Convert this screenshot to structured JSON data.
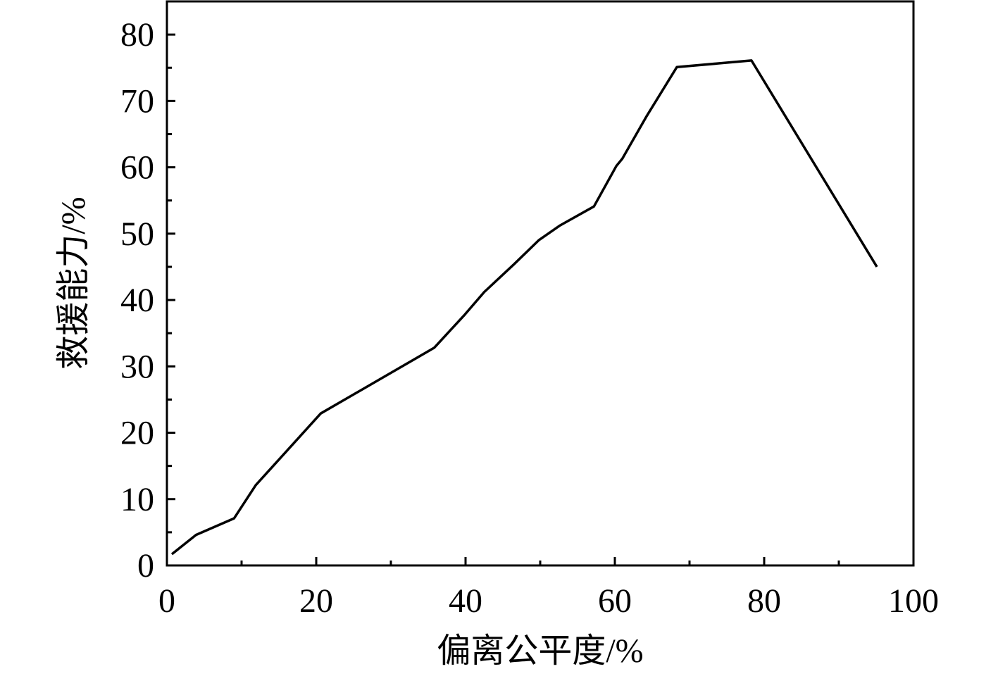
{
  "chart_data": {
    "type": "line",
    "xlabel": "偏离公平度/%",
    "ylabel": "救援能力/%",
    "x": [
      0.66,
      3.9,
      9.0,
      11.9,
      20.6,
      35.8,
      39.9,
      42.5,
      46.5,
      49.8,
      52.6,
      57.2,
      60.2,
      61.0,
      64.2,
      68.3,
      78.3,
      95.1
    ],
    "values": [
      1.7,
      4.6,
      7.1,
      12.1,
      22.9,
      32.8,
      37.8,
      41.2,
      45.4,
      49.0,
      51.2,
      54.1,
      60.2,
      61.3,
      67.6,
      75.1,
      76.1,
      45.0
    ],
    "color": "#000000",
    "xlim": [
      0,
      100
    ],
    "xticks": [
      0,
      20,
      40,
      60,
      80,
      100
    ],
    "ylim": [
      0,
      85
    ],
    "yticks": [
      0,
      10,
      20,
      30,
      40,
      50,
      60,
      70,
      80
    ],
    "grid": false
  }
}
